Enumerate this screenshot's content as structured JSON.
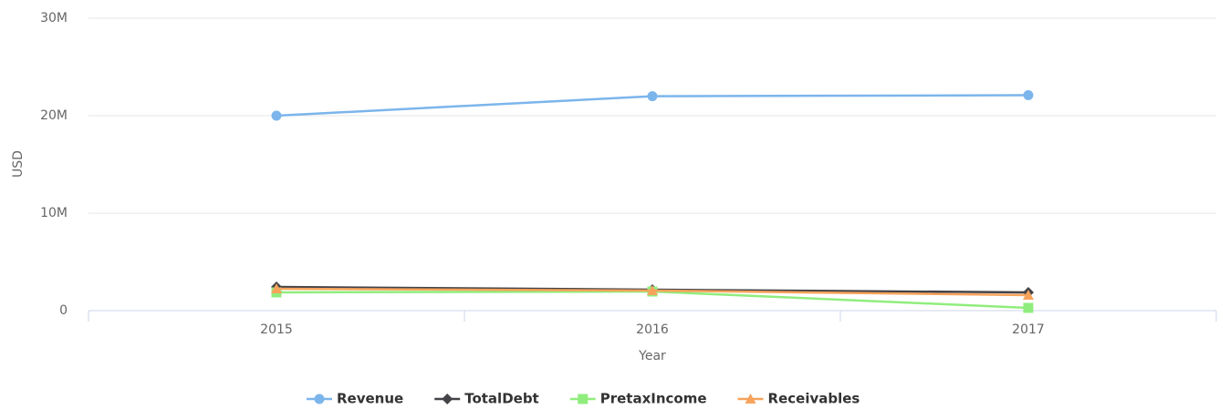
{
  "chart_data": {
    "type": "line",
    "x_label": "Year",
    "y_label": "USD",
    "categories": [
      "2015",
      "2016",
      "2017"
    ],
    "series": [
      {
        "name": "Revenue",
        "color": "#7cb5ec",
        "marker": "circle",
        "values": [
          20000000,
          22000000,
          22100000
        ]
      },
      {
        "name": "TotalDebt",
        "color": "#434348",
        "marker": "diamond",
        "values": [
          2430000,
          2150000,
          1870000
        ]
      },
      {
        "name": "PretaxIncome",
        "color": "#90ed7d",
        "marker": "square",
        "values": [
          1870000,
          1960000,
          280000
        ]
      },
      {
        "name": "Receivables",
        "color": "#f7a35c",
        "marker": "triangle",
        "values": [
          2240000,
          2060000,
          1590000
        ]
      }
    ],
    "ylim": [
      0,
      30000000
    ],
    "yticks": [
      0,
      {
        "value": 10000000,
        "label": "10M"
      },
      {
        "value": 20000000,
        "label": "20M"
      },
      {
        "value": 30000000,
        "label": "30M"
      }
    ],
    "grid": true,
    "legend": "bottom"
  }
}
